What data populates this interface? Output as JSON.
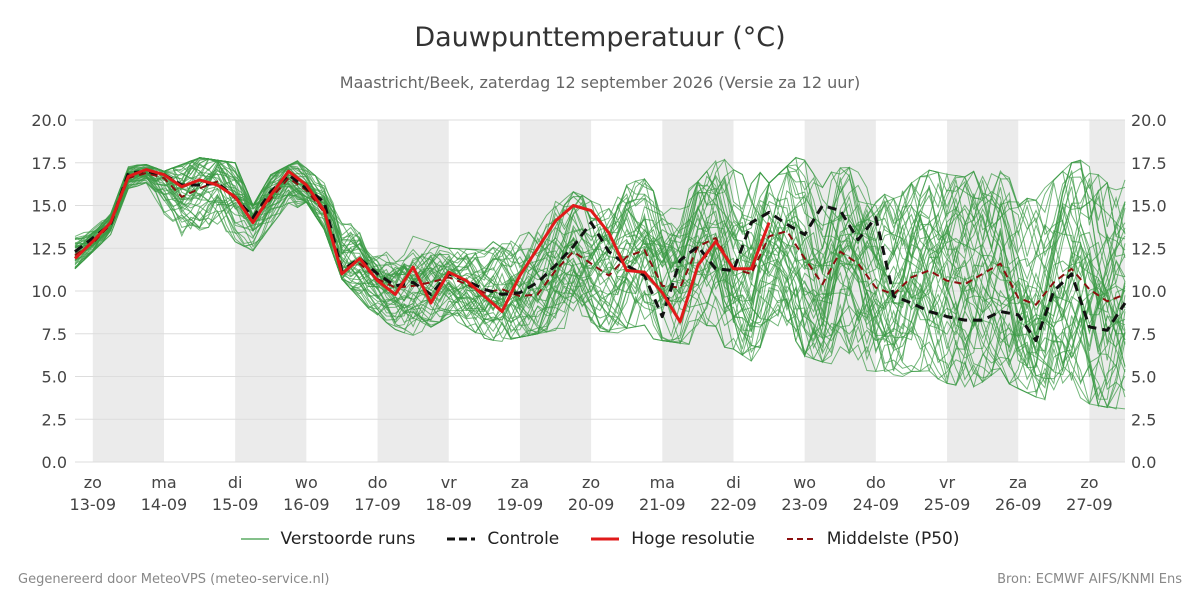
{
  "title": "Dauwpunttemperatuur (°C)",
  "subtitle": "Maastricht/Beek, zaterdag 12 september 2026 (Versie za 12 uur)",
  "footer_left": "Gegenereerd door MeteoVPS (meteo-service.nl)",
  "footer_right": "Bron: ECMWF AIFS/KNMI Ens",
  "colors": {
    "ensemble": "#3a9a45",
    "control": "#111111",
    "high_res": "#e01a1a",
    "median": "#8b0f0f",
    "night_band": "#ebebeb",
    "grid": "#dddddd"
  },
  "legend": [
    {
      "label": "Verstoorde runs",
      "style": "ensemble"
    },
    {
      "label": "Controle",
      "style": "control"
    },
    {
      "label": "Hoge resolutie",
      "style": "high_res"
    },
    {
      "label": "Middelste (P50)",
      "style": "median"
    }
  ],
  "chart_data": {
    "type": "line",
    "title": "Dauwpunttemperatuur (°C)",
    "xlabel": "",
    "ylabel": "",
    "ylim": [
      0,
      20
    ],
    "xlim": [
      -0.25,
      14.5
    ],
    "yticks": [
      "0.0",
      "2.5",
      "5.0",
      "7.5",
      "10.0",
      "12.5",
      "15.0",
      "17.5",
      "20.0"
    ],
    "xticks": [
      {
        "x": 0,
        "day": "zo",
        "date": "13-09"
      },
      {
        "x": 1,
        "day": "ma",
        "date": "14-09"
      },
      {
        "x": 2,
        "day": "di",
        "date": "15-09"
      },
      {
        "x": 3,
        "day": "wo",
        "date": "16-09"
      },
      {
        "x": 4,
        "day": "do",
        "date": "17-09"
      },
      {
        "x": 5,
        "day": "vr",
        "date": "18-09"
      },
      {
        "x": 6,
        "day": "za",
        "date": "19-09"
      },
      {
        "x": 7,
        "day": "zo",
        "date": "20-09"
      },
      {
        "x": 8,
        "day": "ma",
        "date": "21-09"
      },
      {
        "x": 9,
        "day": "di",
        "date": "22-09"
      },
      {
        "x": 10,
        "day": "wo",
        "date": "23-09"
      },
      {
        "x": 11,
        "day": "do",
        "date": "24-09"
      },
      {
        "x": 12,
        "day": "vr",
        "date": "25-09"
      },
      {
        "x": 13,
        "day": "za",
        "date": "26-09"
      },
      {
        "x": 14,
        "day": "zo",
        "date": "27-09"
      }
    ],
    "shaded_days": [
      0,
      2,
      4,
      6,
      8,
      10,
      12,
      14
    ],
    "grid": true,
    "legend_position": "bottom",
    "ensemble_members": 50,
    "ensemble_envelope": {
      "x": [
        -0.25,
        0.25,
        0.5,
        0.75,
        1.0,
        1.5,
        2.0,
        2.25,
        2.5,
        3.0,
        3.25,
        3.5,
        4.0,
        4.5,
        5.0,
        5.5,
        6.0,
        6.5,
        7.0,
        7.5,
        8.0,
        8.5,
        9.0,
        9.5,
        10.0,
        10.5,
        11.0,
        11.5,
        12.0,
        12.5,
        13.0,
        13.5,
        14.0,
        14.5
      ],
      "min": [
        11.3,
        13.3,
        16.0,
        16.2,
        12.6,
        12.6,
        12.2,
        11.3,
        13.4,
        15.2,
        13.6,
        10.7,
        8.4,
        7.1,
        7.6,
        6.8,
        7.3,
        7.7,
        7.7,
        7.5,
        7.1,
        6.8,
        6.6,
        5.2,
        6.2,
        5.5,
        5.3,
        4.9,
        4.6,
        4.2,
        4.3,
        3.3,
        3.4,
        3.0
      ],
      "max": [
        13.6,
        14.6,
        17.4,
        17.4,
        17.0,
        17.8,
        17.5,
        15.0,
        16.8,
        17.9,
        17.2,
        16.1,
        12.8,
        13.2,
        12.5,
        12.4,
        14.8,
        16.2,
        15.4,
        16.3,
        16.8,
        16.4,
        18.8,
        16.3,
        18.3,
        17.2,
        17.3,
        16.5,
        17.7,
        17.5,
        16.8,
        16.5,
        18.5,
        17.1
      ]
    },
    "series": [
      {
        "name": "Controle",
        "x": [
          -0.25,
          0.25,
          0.5,
          0.75,
          1.0,
          1.25,
          1.5,
          1.75,
          2.0,
          2.25,
          2.5,
          2.75,
          3.0,
          3.25,
          3.5,
          3.75,
          4.0,
          4.25,
          4.5,
          4.75,
          5.0,
          5.25,
          5.5,
          5.75,
          6.0,
          6.25,
          6.5,
          6.75,
          7.0,
          7.25,
          7.5,
          7.75,
          8.0,
          8.25,
          8.5,
          8.75,
          9.0,
          9.25,
          9.5,
          9.75,
          10.0,
          10.25,
          10.5,
          10.75,
          11.0,
          11.25,
          11.5,
          11.75,
          12.0,
          12.25,
          12.5,
          12.75,
          13.0,
          13.25,
          13.5,
          13.75,
          14.0,
          14.25,
          14.5
        ],
        "y": [
          12.3,
          13.9,
          16.9,
          17.0,
          16.8,
          16.2,
          16.2,
          16.3,
          15.5,
          14.3,
          15.8,
          16.8,
          16.0,
          15.2,
          11.2,
          11.9,
          11.0,
          10.3,
          10.5,
          9.8,
          11.0,
          10.6,
          10.1,
          9.8,
          9.9,
          10.5,
          11.5,
          12.6,
          14.0,
          12.3,
          11.5,
          10.9,
          8.5,
          11.8,
          12.6,
          11.3,
          11.2,
          14.0,
          14.6,
          13.9,
          13.3,
          15.0,
          14.7,
          13.0,
          14.3,
          9.7,
          9.3,
          8.8,
          8.5,
          8.3,
          8.3,
          8.8,
          8.6,
          7.1,
          10.0,
          11.0,
          7.9,
          7.7,
          9.3
        ]
      },
      {
        "name": "Hoge resolutie",
        "x": [
          -0.25,
          0.0,
          0.25,
          0.5,
          0.75,
          1.0,
          1.25,
          1.5,
          1.75,
          2.0,
          2.25,
          2.5,
          2.75,
          3.0,
          3.25,
          3.5,
          3.75,
          4.0,
          4.25,
          4.5,
          4.75,
          5.0,
          5.25,
          5.5,
          5.75,
          6.0,
          6.25,
          6.5,
          6.75,
          7.0,
          7.25,
          7.5,
          7.75,
          8.0,
          8.25,
          8.5,
          8.75,
          9.0,
          9.25,
          9.5
        ],
        "y": [
          11.9,
          12.9,
          14.0,
          16.7,
          17.1,
          16.8,
          16.1,
          16.5,
          16.2,
          15.5,
          14.0,
          15.6,
          17.0,
          16.2,
          14.7,
          11.0,
          11.9,
          10.6,
          9.8,
          11.4,
          9.3,
          11.1,
          10.6,
          9.7,
          8.8,
          10.9,
          12.5,
          14.1,
          15.0,
          14.7,
          13.4,
          11.2,
          11.1,
          9.9,
          8.2,
          11.5,
          12.9,
          11.3,
          11.3,
          14.0
        ]
      },
      {
        "name": "Middelste (P50)",
        "x": [
          -0.25,
          0.0,
          0.25,
          0.5,
          0.75,
          1.0,
          1.25,
          1.5,
          1.75,
          2.0,
          2.25,
          2.5,
          2.75,
          3.0,
          3.25,
          3.5,
          3.75,
          4.0,
          4.25,
          4.5,
          4.75,
          5.0,
          5.25,
          5.5,
          5.75,
          6.0,
          6.25,
          6.5,
          6.75,
          7.0,
          7.25,
          7.5,
          7.75,
          8.0,
          8.25,
          8.5,
          8.75,
          9.0,
          9.25,
          9.5,
          9.75,
          10.0,
          10.25,
          10.5,
          10.75,
          11.0,
          11.25,
          11.5,
          11.75,
          12.0,
          12.25,
          12.5,
          12.75,
          13.0,
          13.25,
          13.5,
          13.75,
          14.0,
          14.25,
          14.5
        ],
        "y": [
          12.1,
          12.8,
          13.9,
          16.6,
          16.9,
          16.6,
          15.5,
          16.0,
          16.4,
          15.4,
          14.1,
          15.4,
          16.6,
          15.9,
          14.6,
          11.4,
          11.6,
          10.7,
          10.2,
          10.3,
          10.5,
          10.8,
          10.4,
          9.9,
          10.1,
          9.7,
          9.8,
          11.2,
          12.3,
          11.6,
          10.9,
          12.0,
          12.4,
          10.3,
          10.2,
          12.6,
          13.1,
          11.3,
          11.0,
          13.2,
          13.5,
          11.9,
          10.4,
          12.3,
          11.6,
          10.2,
          9.8,
          10.8,
          11.2,
          10.6,
          10.4,
          11.0,
          11.6,
          9.6,
          9.2,
          10.5,
          11.3,
          10.1,
          9.4,
          9.8
        ]
      }
    ]
  }
}
